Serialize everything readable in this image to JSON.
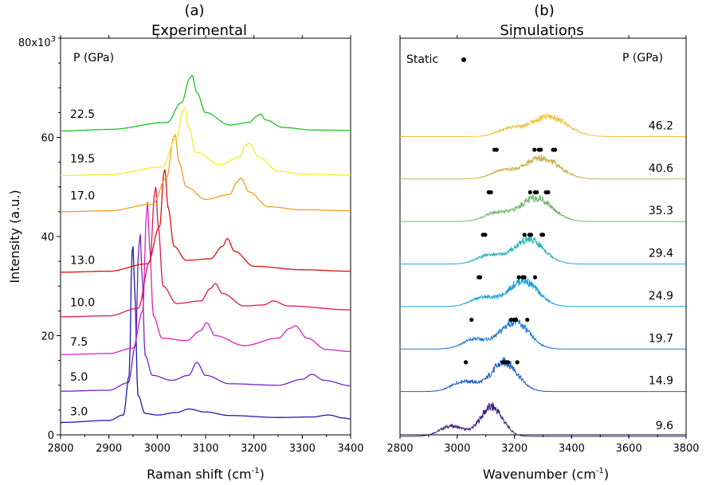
{
  "chart_data": [
    {
      "type": "line",
      "panel_label": "(a)",
      "title": "Experimental",
      "xlabel": "Raman shift (cm",
      "xlabel_sup": "-1",
      "xlabel_end": ")",
      "ylabel": "Intensity (a.u.)",
      "xlim": [
        2800,
        3400
      ],
      "ylim": [
        0,
        80000
      ],
      "xticks": [
        "2800",
        "2900",
        "3000",
        "3100",
        "3200",
        "3300",
        "3400"
      ],
      "yticks": [
        "0",
        "20",
        "40",
        "60"
      ],
      "ytick_top": "80x10",
      "ytick_top_sup": "3",
      "legend_header": "P (GPa)",
      "grid": false,
      "series": [
        {
          "name": "3.0",
          "color": "#1a1ab4",
          "baseline": 2500,
          "label_y": 3000,
          "points": [
            [
              2800,
              2500
            ],
            [
              2900,
              2900
            ],
            [
              2930,
              4000
            ],
            [
              2942,
              12000
            ],
            [
              2948,
              37000
            ],
            [
              2950,
              38000
            ],
            [
              2953,
              30000
            ],
            [
              2960,
              8000
            ],
            [
              2975,
              4300
            ],
            [
              3000,
              4000
            ],
            [
              3040,
              4500
            ],
            [
              3065,
              5200
            ],
            [
              3100,
              4600
            ],
            [
              3150,
              3900
            ],
            [
              3250,
              3500
            ],
            [
              3320,
              3600
            ],
            [
              3355,
              4000
            ],
            [
              3385,
              3400
            ],
            [
              3400,
              3200
            ]
          ]
        },
        {
          "name": "5.0",
          "color": "#7720c8",
          "baseline": 8800,
          "label_y": 10000,
          "points": [
            [
              2800,
              8800
            ],
            [
              2900,
              9000
            ],
            [
              2940,
              10500
            ],
            [
              2955,
              18000
            ],
            [
              2962,
              38000
            ],
            [
              2965,
              40500
            ],
            [
              2968,
              33000
            ],
            [
              2975,
              16000
            ],
            [
              2990,
              12000
            ],
            [
              3030,
              11000
            ],
            [
              3065,
              12000
            ],
            [
              3082,
              14600
            ],
            [
              3100,
              12000
            ],
            [
              3150,
              10300
            ],
            [
              3250,
              10000
            ],
            [
              3300,
              11200
            ],
            [
              3320,
              12200
            ],
            [
              3345,
              11000
            ],
            [
              3400,
              9900
            ]
          ]
        },
        {
          "name": "7.5",
          "color": "#dd20c0",
          "baseline": 16200,
          "label_y": 17000,
          "points": [
            [
              2800,
              16200
            ],
            [
              2900,
              16400
            ],
            [
              2950,
              17500
            ],
            [
              2970,
              25000
            ],
            [
              2978,
              45000
            ],
            [
              2980,
              47000
            ],
            [
              2984,
              38000
            ],
            [
              2992,
              24000
            ],
            [
              3010,
              19500
            ],
            [
              3060,
              19000
            ],
            [
              3090,
              21000
            ],
            [
              3102,
              22600
            ],
            [
              3120,
              20000
            ],
            [
              3180,
              18000
            ],
            [
              3250,
              19500
            ],
            [
              3275,
              21500
            ],
            [
              3285,
              22000
            ],
            [
              3310,
              19500
            ],
            [
              3350,
              17200
            ],
            [
              3400,
              16800
            ]
          ]
        },
        {
          "name": "10.0",
          "color": "#e01848",
          "baseline": 23800,
          "label_y": 25000,
          "points": [
            [
              2800,
              23800
            ],
            [
              2900,
              24000
            ],
            [
              2960,
              25500
            ],
            [
              2985,
              35000
            ],
            [
              2995,
              49000
            ],
            [
              2997,
              50000
            ],
            [
              3002,
              42000
            ],
            [
              3012,
              30000
            ],
            [
              3040,
              26500
            ],
            [
              3090,
              27000
            ],
            [
              3110,
              29500
            ],
            [
              3120,
              30500
            ],
            [
              3135,
              28500
            ],
            [
              3180,
              26000
            ],
            [
              3220,
              26200
            ],
            [
              3240,
              27000
            ],
            [
              3270,
              26000
            ],
            [
              3400,
              25200
            ]
          ]
        },
        {
          "name": "13.0",
          "color": "#e01010",
          "baseline": 32800,
          "label_y": 33500,
          "points": [
            [
              2800,
              32800
            ],
            [
              2900,
              33000
            ],
            [
              2980,
              34500
            ],
            [
              3005,
              42000
            ],
            [
              3014,
              53000
            ],
            [
              3016,
              53500
            ],
            [
              3022,
              46000
            ],
            [
              3035,
              38000
            ],
            [
              3060,
              35200
            ],
            [
              3110,
              35500
            ],
            [
              3135,
              38000
            ],
            [
              3145,
              39600
            ],
            [
              3160,
              37000
            ],
            [
              3200,
              34000
            ],
            [
              3300,
              33300
            ],
            [
              3400,
              33000
            ]
          ]
        },
        {
          "name": "17.0",
          "color": "#f0a020",
          "baseline": 45000,
          "label_y": 46500,
          "points": [
            [
              2800,
              45000
            ],
            [
              2900,
              45200
            ],
            [
              2990,
              46500
            ],
            [
              3020,
              52000
            ],
            [
              3034,
              60000
            ],
            [
              3037,
              60500
            ],
            [
              3045,
              55000
            ],
            [
              3060,
              50000
            ],
            [
              3100,
              47500
            ],
            [
              3150,
              48500
            ],
            [
              3165,
              51000
            ],
            [
              3173,
              51800
            ],
            [
              3190,
              49000
            ],
            [
              3230,
              46000
            ],
            [
              3300,
              45400
            ],
            [
              3400,
              45200
            ]
          ]
        },
        {
          "name": "19.5",
          "color": "#f0f028",
          "baseline": 52300,
          "label_y": 54000,
          "points": [
            [
              2800,
              52300
            ],
            [
              2900,
              52500
            ],
            [
              3010,
              54000
            ],
            [
              3040,
              60000
            ],
            [
              3054,
              65500
            ],
            [
              3057,
              66000
            ],
            [
              3065,
              62000
            ],
            [
              3080,
              57000
            ],
            [
              3130,
              54500
            ],
            [
              3170,
              56000
            ],
            [
              3183,
              58500
            ],
            [
              3190,
              58800
            ],
            [
              3210,
              56000
            ],
            [
              3250,
              53200
            ],
            [
              3300,
              52600
            ],
            [
              3400,
              52400
            ]
          ]
        },
        {
          "name": "22.5",
          "color": "#20c020",
          "baseline": 61300,
          "label_y": 63000,
          "points": [
            [
              2800,
              61300
            ],
            [
              2900,
              61600
            ],
            [
              3020,
              63000
            ],
            [
              3050,
              67000
            ],
            [
              3068,
              72000
            ],
            [
              3072,
              72500
            ],
            [
              3082,
              69000
            ],
            [
              3100,
              65000
            ],
            [
              3150,
              62500
            ],
            [
              3190,
              63000
            ],
            [
              3205,
              64200
            ],
            [
              3213,
              64700
            ],
            [
              3225,
              63500
            ],
            [
              3260,
              62000
            ],
            [
              3320,
              61500
            ],
            [
              3400,
              61400
            ]
          ]
        }
      ]
    },
    {
      "type": "line",
      "panel_label": "(b)",
      "title": "Simulations",
      "xlabel": "Wavenumber (cm",
      "xlabel_sup": "-1",
      "xlabel_end": ")",
      "xlim": [
        2800,
        3800
      ],
      "xticks": [
        "2800",
        "3000",
        "3200",
        "3400",
        "3600",
        "3800"
      ],
      "legend_header": "P (GPa)",
      "static_label": "Static",
      "grid": false,
      "series": [
        {
          "name": "9.6",
          "color": "#3c2080",
          "baseline": 0.0,
          "center": 3120,
          "width": 55,
          "height": 0.62,
          "tail": "low",
          "static_peaks": []
        },
        {
          "name": "14.9",
          "color": "#1a5cc8",
          "baseline": 0.95,
          "center": 3165,
          "width": 65,
          "height": 0.62,
          "static_peaks": [
            3030,
            3160,
            3170,
            3178,
            3210
          ]
        },
        {
          "name": "19.7",
          "color": "#1c78d0",
          "baseline": 1.85,
          "center": 3200,
          "width": 70,
          "height": 0.58,
          "static_peaks": [
            3050,
            3188,
            3198,
            3205,
            3245
          ]
        },
        {
          "name": "24.9",
          "color": "#1ca0d8",
          "baseline": 2.75,
          "center": 3230,
          "width": 72,
          "height": 0.55,
          "static_peaks": [
            3075,
            3080,
            3215,
            3228,
            3235,
            3272
          ]
        },
        {
          "name": "29.4",
          "color": "#28b0b8",
          "baseline": 3.65,
          "center": 3250,
          "width": 75,
          "height": 0.52,
          "static_peaks": [
            3090,
            3098,
            3235,
            3252,
            3258,
            3295,
            3300
          ]
        },
        {
          "name": "35.3",
          "color": "#70b870",
          "baseline": 4.55,
          "center": 3275,
          "width": 80,
          "height": 0.5,
          "static_peaks": [
            3110,
            3118,
            3255,
            3272,
            3278,
            3310,
            3318
          ]
        },
        {
          "name": "40.6",
          "color": "#c8b050",
          "baseline": 5.45,
          "center": 3295,
          "width": 85,
          "height": 0.45,
          "static_peaks": [
            3130,
            3138,
            3270,
            3285,
            3292,
            3335,
            3342
          ]
        },
        {
          "name": "46.2",
          "color": "#f0c038",
          "baseline": 6.35,
          "center": 3320,
          "width": 90,
          "height": 0.42,
          "static_peaks": []
        }
      ]
    }
  ]
}
